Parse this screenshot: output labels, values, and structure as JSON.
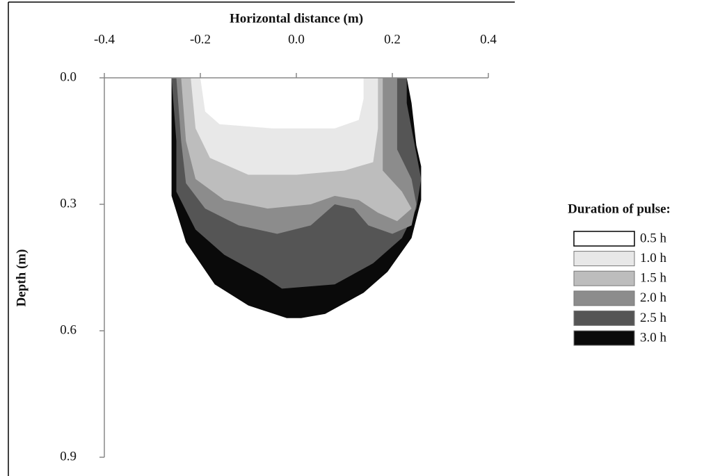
{
  "chart_data": {
    "type": "contour",
    "title": "Horizontal distance (m)",
    "ylabel": "Depth (m)",
    "legend_title": "Duration of pulse:",
    "xlim": [
      -0.4,
      0.4
    ],
    "ylim": [
      0,
      0.9
    ],
    "y_inverted": true,
    "x_axis_position": "top",
    "xticks": [
      -0.4,
      -0.2,
      {
        "value": 0,
        "label": "0.0"
      },
      0.2,
      0.4
    ],
    "yticks": [
      {
        "value": 0,
        "label": "0.0"
      },
      0.3,
      0.6,
      0.9
    ],
    "legend": "right",
    "series": [
      {
        "name": "0.5 h",
        "color": "#ffffff",
        "x": [
          -0.2,
          -0.19,
          -0.16,
          -0.05,
          0.08,
          0.13,
          0.14,
          0.14
        ],
        "values": [
          0,
          0.08,
          0.11,
          0.12,
          0.12,
          0.1,
          0.05,
          0
        ]
      },
      {
        "name": "1.0 h",
        "color": "#e8e8e8",
        "x": [
          -0.22,
          -0.21,
          -0.18,
          -0.1,
          0.0,
          0.1,
          0.16,
          0.17,
          0.17,
          0.17
        ],
        "values": [
          0,
          0.12,
          0.19,
          0.23,
          0.23,
          0.22,
          0.2,
          0.12,
          0.05,
          0
        ]
      },
      {
        "name": "1.5 h",
        "color": "#bdbdbd",
        "x": [
          -0.24,
          -0.23,
          -0.21,
          -0.15,
          -0.06,
          0.03,
          0.08,
          0.13,
          0.17,
          0.21,
          0.24,
          0.22,
          0.18,
          0.18,
          0.18
        ],
        "values": [
          0,
          0.15,
          0.24,
          0.29,
          0.31,
          0.3,
          0.28,
          0.29,
          0.32,
          0.34,
          0.31,
          0.27,
          0.22,
          0.05,
          0
        ]
      },
      {
        "name": "2.0 h",
        "color": "#8c8c8c",
        "x": [
          -0.25,
          -0.24,
          -0.23,
          -0.19,
          -0.12,
          -0.04,
          0.03,
          0.08,
          0.12,
          0.15,
          0.2,
          0.24,
          0.25,
          0.24,
          0.21,
          0.21,
          0.21
        ],
        "values": [
          0,
          0.15,
          0.25,
          0.31,
          0.35,
          0.37,
          0.35,
          0.3,
          0.31,
          0.35,
          0.37,
          0.35,
          0.3,
          0.24,
          0.17,
          0.05,
          0
        ]
      },
      {
        "name": "2.5 h",
        "color": "#555555",
        "x": [
          -0.26,
          -0.25,
          -0.25,
          -0.21,
          -0.15,
          -0.07,
          -0.03,
          0.08,
          0.16,
          0.22,
          0.25,
          0.26,
          0.25,
          0.23,
          0.23
        ],
        "values": [
          0,
          0.15,
          0.27,
          0.36,
          0.42,
          0.47,
          0.5,
          0.49,
          0.44,
          0.38,
          0.31,
          0.24,
          0.18,
          0.06,
          0
        ]
      },
      {
        "name": "3.0 h",
        "color": "#0a0a0a",
        "x": [
          -0.26,
          -0.26,
          -0.26,
          -0.23,
          -0.17,
          -0.1,
          -0.02,
          0.01,
          0.06,
          0.14,
          0.19,
          0.24,
          0.26,
          0.26,
          0.25,
          0.24,
          0.23
        ],
        "values": [
          0,
          0.15,
          0.28,
          0.39,
          0.49,
          0.54,
          0.57,
          0.57,
          0.56,
          0.51,
          0.46,
          0.38,
          0.29,
          0.21,
          0.16,
          0.06,
          0
        ]
      }
    ]
  }
}
